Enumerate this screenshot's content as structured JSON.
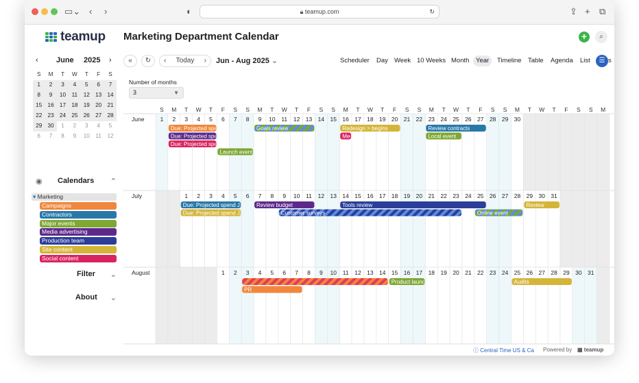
{
  "browser": {
    "url": "teamup.com"
  },
  "app": {
    "logo_text": "teamup",
    "title": "Marketing Department Calendar"
  },
  "mini_calendar": {
    "month": "June",
    "year": "2025",
    "weekdays": [
      "S",
      "M",
      "T",
      "W",
      "T",
      "F",
      "S"
    ],
    "weeks": [
      [
        {
          "d": "1",
          "c": 1
        },
        {
          "d": "2",
          "c": 1
        },
        {
          "d": "3",
          "c": 1
        },
        {
          "d": "4",
          "c": 1
        },
        {
          "d": "5",
          "c": 1
        },
        {
          "d": "6",
          "c": 1
        },
        {
          "d": "7",
          "c": 1
        }
      ],
      [
        {
          "d": "8",
          "c": 1
        },
        {
          "d": "9",
          "c": 1
        },
        {
          "d": "10",
          "c": 1
        },
        {
          "d": "11",
          "c": 1
        },
        {
          "d": "12",
          "c": 1
        },
        {
          "d": "13",
          "c": 1
        },
        {
          "d": "14",
          "c": 1
        }
      ],
      [
        {
          "d": "15",
          "c": 1
        },
        {
          "d": "16",
          "c": 1
        },
        {
          "d": "17",
          "c": 1
        },
        {
          "d": "18",
          "c": 1
        },
        {
          "d": "19",
          "c": 1
        },
        {
          "d": "20",
          "c": 1
        },
        {
          "d": "21",
          "c": 1
        }
      ],
      [
        {
          "d": "22",
          "c": 1
        },
        {
          "d": "23",
          "c": 1
        },
        {
          "d": "24",
          "c": 1
        },
        {
          "d": "25",
          "c": 1
        },
        {
          "d": "26",
          "c": 1
        },
        {
          "d": "27",
          "c": 1
        },
        {
          "d": "28",
          "c": 1
        }
      ],
      [
        {
          "d": "29",
          "c": 1
        },
        {
          "d": "30",
          "c": 1
        },
        {
          "d": "1",
          "c": 0
        },
        {
          "d": "2",
          "c": 0
        },
        {
          "d": "3",
          "c": 0
        },
        {
          "d": "4",
          "c": 0
        },
        {
          "d": "5",
          "c": 0
        }
      ],
      [
        {
          "d": "6",
          "c": 0
        },
        {
          "d": "7",
          "c": 0
        },
        {
          "d": "8",
          "c": 0
        },
        {
          "d": "9",
          "c": 0
        },
        {
          "d": "10",
          "c": 0
        },
        {
          "d": "11",
          "c": 0
        },
        {
          "d": "12",
          "c": 0
        }
      ]
    ]
  },
  "calendars": {
    "title": "Calendars",
    "group": "Marketing",
    "items": [
      {
        "label": "Campaigns",
        "color": "#f0873c"
      },
      {
        "label": "Contractors",
        "color": "#2879a8"
      },
      {
        "label": "Major events",
        "color": "#7ea734"
      },
      {
        "label": "Media advertising",
        "color": "#5d2a8c"
      },
      {
        "label": "Production team",
        "color": "#2a3e9a"
      },
      {
        "label": "Site content",
        "color": "#d4b53a"
      },
      {
        "label": "Social content",
        "color": "#d9255f"
      }
    ]
  },
  "sections": {
    "filter": "Filter",
    "about": "About"
  },
  "toolbar": {
    "today": "Today",
    "range": "Jun - Aug 2025",
    "views": [
      "Scheduler",
      "Day",
      "Week",
      "10 Weeks",
      "Month",
      "Year",
      "Timeline",
      "Table",
      "Agenda",
      "List",
      "Tiles"
    ],
    "selected_view": "Year"
  },
  "months_select": {
    "label": "Number of months",
    "value": "3"
  },
  "year_view": {
    "dow_header": [
      "S",
      "M",
      "T",
      "W",
      "T",
      "F",
      "S",
      "S",
      "M",
      "T",
      "W",
      "T",
      "F",
      "S",
      "S",
      "M",
      "T",
      "W",
      "T",
      "F",
      "S",
      "S",
      "M",
      "T",
      "W",
      "T",
      "F",
      "S",
      "S",
      "M",
      "T",
      "W",
      "T",
      "F",
      "S",
      "S",
      "M"
    ],
    "months": [
      {
        "name": "June",
        "start_col": 0,
        "days": 30,
        "events": [
          {
            "title": "Due: Projected spend J",
            "color": "#f0873c",
            "start": 1,
            "end": 5,
            "lane": 0
          },
          {
            "title": "Due: Projected spend J",
            "color": "#5d2a8c",
            "start": 1,
            "end": 5,
            "lane": 1
          },
          {
            "title": "Due: Projected spend J",
            "color": "#d9255f",
            "start": 1,
            "end": 5,
            "lane": 2
          },
          {
            "title": "Launch event",
            "color": "#7ea734",
            "start": 5,
            "end": 8,
            "lane": 3
          },
          {
            "title": "Goals review",
            "color": "#7ea734",
            "start": 8,
            "end": 13,
            "lane": 0,
            "striped": true
          },
          {
            "title": "Redesign > begins",
            "color": "#d4b53a",
            "start": 15,
            "end": 20,
            "lane": 0
          },
          {
            "title": "Mee",
            "color": "#d9255f",
            "start": 15,
            "end": 16,
            "lane": 1
          },
          {
            "title": "Review contracts",
            "color": "#2879a8",
            "start": 22,
            "end": 27,
            "lane": 0
          },
          {
            "title": "Local event",
            "color": "#7ea734",
            "start": 22,
            "end": 25,
            "lane": 1
          }
        ]
      },
      {
        "name": "July",
        "start_col": 2,
        "days": 31,
        "events": [
          {
            "title": "Due: Projected spend J",
            "color": "#2879a8",
            "start": 0,
            "end": 5,
            "lane": 0
          },
          {
            "title": "Due: Projected spend J",
            "color": "#d4b53a",
            "start": 0,
            "end": 5,
            "lane": 1
          },
          {
            "title": "Review budget",
            "color": "#5d2a8c",
            "start": 6,
            "end": 11,
            "lane": 0
          },
          {
            "title": "Customer surveys",
            "color": "#2a3e9a",
            "start": 8,
            "end": 23,
            "lane": 1,
            "striped": true
          },
          {
            "title": "Tools review",
            "color": "#2a3e9a",
            "start": 13,
            "end": 25,
            "lane": 0
          },
          {
            "title": "Online event",
            "color": "#7ea734",
            "start": 24,
            "end": 28,
            "lane": 1,
            "striped": true
          },
          {
            "title": "Review",
            "color": "#d4b53a",
            "start": 28,
            "end": 31,
            "lane": 0
          }
        ]
      },
      {
        "name": "August",
        "start_col": 5,
        "days": 31,
        "events": [
          {
            "title": "",
            "color": "#f0873c",
            "start": 2,
            "end": 14,
            "lane": 0,
            "striped": true
          },
          {
            "title": "PR",
            "color": "#f0873c",
            "start": 2,
            "end": 7,
            "lane": 1
          },
          {
            "title": "Product launc",
            "color": "#7ea734",
            "start": 14,
            "end": 17,
            "lane": 0
          },
          {
            "title": "Audits",
            "color": "#d4b53a",
            "start": 24,
            "end": 29,
            "lane": 0
          }
        ]
      }
    ]
  },
  "footer": {
    "timezone": "Central Time US & Ca",
    "powered_by": "Powered by",
    "brand": "teamup"
  }
}
